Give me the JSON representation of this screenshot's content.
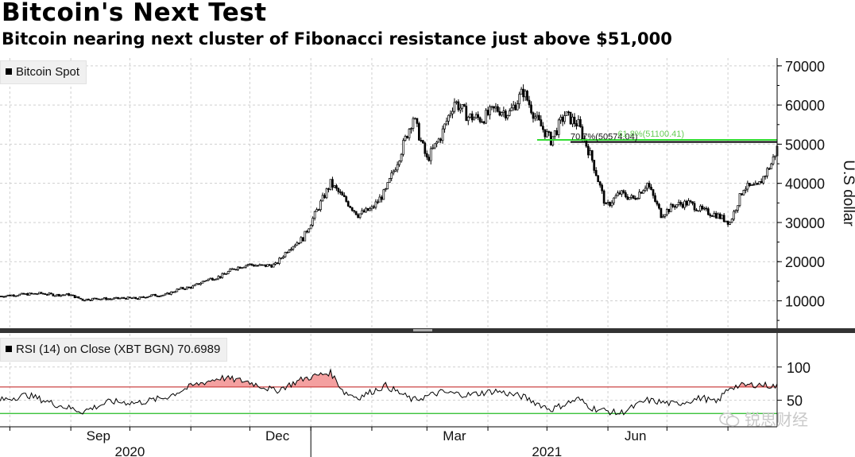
{
  "header": {
    "title": "Bitcoin's Next Test",
    "subtitle": "Bitcoin nearing next cluster of Fibonacci resistance just above $51,000"
  },
  "legend": {
    "price_label": "Bitcoin Spot",
    "rsi_label": "RSI (14)   on Close (XBT BGN) 70.6989"
  },
  "watermark": {
    "text": "锐思财经",
    "icon": "wechat-icon"
  },
  "colors": {
    "price": "#000000",
    "fib_line": "#33dd33",
    "fib_text": "#66cc55",
    "rsi_upper": "#cc4444",
    "rsi_lower": "#22bb22",
    "rsi_fill": "#f4a0a0",
    "grid": "#cfcfcf"
  },
  "chart_data": [
    {
      "type": "line",
      "series_label": "Bitcoin Spot",
      "ylabel": "U.S dollar",
      "y_axis_position": "right",
      "ylim": [
        3000,
        72000
      ],
      "yticks": [
        10000,
        20000,
        30000,
        40000,
        50000,
        60000,
        70000
      ],
      "grid": true,
      "x_range": [
        "2020-07-27",
        "2021-08-26"
      ],
      "month_ticks": [
        "Sep",
        "Dec",
        "Mar",
        "Jun"
      ],
      "year_ticks": [
        "2020",
        "2021"
      ],
      "annotations": [
        {
          "label": "70.7%(50574.04)",
          "value": 50574.04,
          "color": "black"
        },
        {
          "label": "61.8%(51100.41)",
          "value": 51100.41,
          "color": "green"
        }
      ],
      "points": [
        [
          "2020-07-27",
          11200
        ],
        [
          "2020-08-03",
          11500
        ],
        [
          "2020-08-10",
          11700
        ],
        [
          "2020-08-17",
          11900
        ],
        [
          "2020-08-24",
          11500
        ],
        [
          "2020-08-31",
          11600
        ],
        [
          "2020-09-07",
          10300
        ],
        [
          "2020-09-14",
          10600
        ],
        [
          "2020-09-21",
          10500
        ],
        [
          "2020-09-28",
          10700
        ],
        [
          "2020-10-05",
          10600
        ],
        [
          "2020-10-12",
          11400
        ],
        [
          "2020-10-19",
          11500
        ],
        [
          "2020-10-26",
          13000
        ],
        [
          "2020-11-02",
          13600
        ],
        [
          "2020-11-09",
          15400
        ],
        [
          "2020-11-16",
          16200
        ],
        [
          "2020-11-23",
          18300
        ],
        [
          "2020-11-30",
          19300
        ],
        [
          "2020-12-07",
          18900
        ],
        [
          "2020-12-14",
          19200
        ],
        [
          "2020-12-21",
          23500
        ],
        [
          "2020-12-28",
          26000
        ],
        [
          "2021-01-04",
          33000
        ],
        [
          "2021-01-11",
          40000
        ],
        [
          "2021-01-18",
          36000
        ],
        [
          "2021-01-25",
          32000
        ],
        [
          "2021-02-01",
          33500
        ],
        [
          "2021-02-08",
          38000
        ],
        [
          "2021-02-15",
          47000
        ],
        [
          "2021-02-22",
          57000
        ],
        [
          "2021-03-01",
          46000
        ],
        [
          "2021-03-08",
          52000
        ],
        [
          "2021-03-15",
          61000
        ],
        [
          "2021-03-22",
          57000
        ],
        [
          "2021-03-29",
          56500
        ],
        [
          "2021-04-05",
          59000
        ],
        [
          "2021-04-12",
          58000
        ],
        [
          "2021-04-19",
          63500
        ],
        [
          "2021-04-26",
          56000
        ],
        [
          "2021-05-03",
          51000
        ],
        [
          "2021-05-10",
          57500
        ],
        [
          "2021-05-17",
          55000
        ],
        [
          "2021-05-24",
          46000
        ],
        [
          "2021-05-31",
          34000
        ],
        [
          "2021-06-07",
          37500
        ],
        [
          "2021-06-14",
          36000
        ],
        [
          "2021-06-21",
          40000
        ],
        [
          "2021-06-28",
          32000
        ],
        [
          "2021-07-05",
          34500
        ],
        [
          "2021-07-12",
          35000
        ],
        [
          "2021-07-19",
          33000
        ],
        [
          "2021-07-26",
          32000
        ],
        [
          "2021-08-02",
          30000
        ],
        [
          "2021-08-09",
          39000
        ],
        [
          "2021-08-16",
          39000
        ],
        [
          "2021-08-23",
          45000
        ],
        [
          "2021-08-26",
          49000
        ]
      ]
    },
    {
      "type": "line",
      "series_label": "RSI (14) on Close (XBT BGN) 70.6989",
      "ylim": [
        10,
        150
      ],
      "yticks": [
        50,
        100
      ],
      "reference_lines": [
        30,
        70
      ],
      "latest_value": 70.6989,
      "points": [
        [
          "2020-07-27",
          50
        ],
        [
          "2020-08-10",
          58
        ],
        [
          "2020-08-24",
          44
        ],
        [
          "2020-09-07",
          33
        ],
        [
          "2020-09-21",
          48
        ],
        [
          "2020-10-05",
          46
        ],
        [
          "2020-10-19",
          54
        ],
        [
          "2020-11-02",
          72
        ],
        [
          "2020-11-16",
          84
        ],
        [
          "2020-11-30",
          78
        ],
        [
          "2020-12-14",
          64
        ],
        [
          "2020-12-28",
          82
        ],
        [
          "2021-01-11",
          92
        ],
        [
          "2021-01-18",
          62
        ],
        [
          "2021-01-25",
          54
        ],
        [
          "2021-02-08",
          72
        ],
        [
          "2021-02-22",
          50
        ],
        [
          "2021-03-08",
          62
        ],
        [
          "2021-03-22",
          58
        ],
        [
          "2021-04-05",
          64
        ],
        [
          "2021-04-19",
          55
        ],
        [
          "2021-05-03",
          36
        ],
        [
          "2021-05-17",
          52
        ],
        [
          "2021-05-24",
          38
        ],
        [
          "2021-06-07",
          30
        ],
        [
          "2021-06-21",
          50
        ],
        [
          "2021-07-05",
          44
        ],
        [
          "2021-07-19",
          54
        ],
        [
          "2021-07-26",
          46
        ],
        [
          "2021-08-02",
          70
        ],
        [
          "2021-08-16",
          74
        ],
        [
          "2021-08-26",
          70.7
        ]
      ]
    }
  ]
}
